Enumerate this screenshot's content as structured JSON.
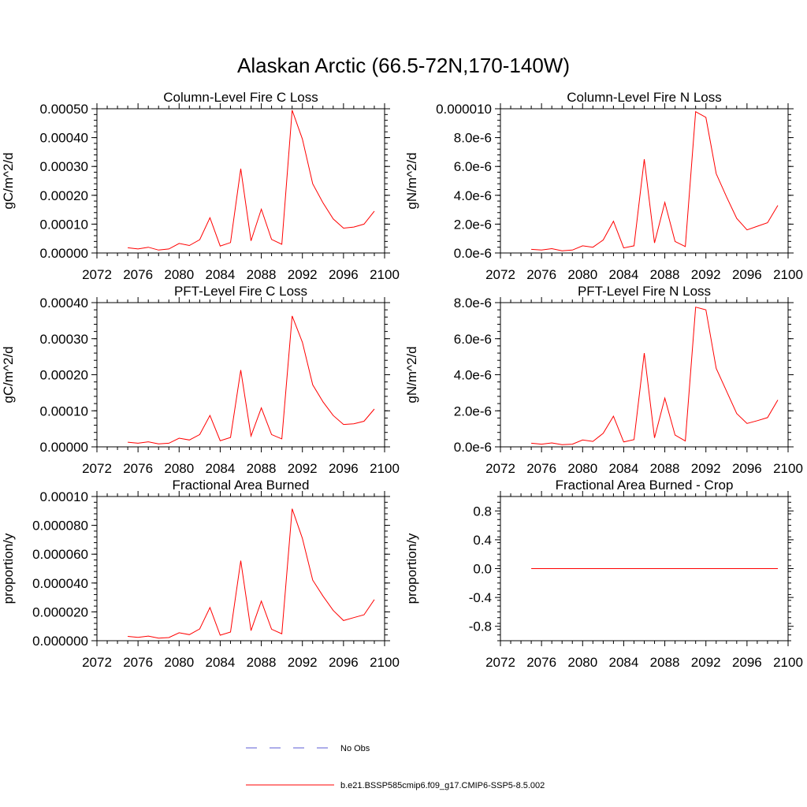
{
  "figure": {
    "title": "Alaskan Arctic (66.5-72N,170-140W)"
  },
  "legend": {
    "entries": [
      {
        "label": "No Obs",
        "color": "#5b5bd6",
        "style": "dashed"
      },
      {
        "label": "b.e21.BSSP585cmip6.f09_g17.CMIP6-SSP5-8.5.002",
        "color": "#ff0000",
        "style": "solid"
      }
    ]
  },
  "colors": {
    "model_series": "#ff0000",
    "obs_series": "#5b5bd6",
    "axes": "#000000"
  },
  "chart_data": [
    {
      "type": "line",
      "title": "Column-Level Fire C Loss",
      "ylabel": "gC/m^2/d",
      "xlim": [
        2072,
        2100
      ],
      "ylim": [
        0,
        0.0005
      ],
      "xticks": [
        2072,
        2076,
        2080,
        2084,
        2088,
        2092,
        2096,
        2100
      ],
      "yticks": [
        0,
        0.0001,
        0.0002,
        0.0003,
        0.0004,
        0.0005
      ],
      "ytick_labels": [
        "0.00000",
        "0.00010",
        "0.00020",
        "0.00030",
        "0.00040",
        "0.00050"
      ],
      "x": [
        2075,
        2076,
        2077,
        2078,
        2079,
        2080,
        2081,
        2082,
        2083,
        2084,
        2085,
        2086,
        2087,
        2088,
        2089,
        2090,
        2091,
        2092,
        2093,
        2094,
        2095,
        2096,
        2097,
        2098,
        2099
      ],
      "series": [
        {
          "values": [
            1.8e-05,
            1.4e-05,
            2e-05,
            1e-05,
            1.4e-05,
            3.3e-05,
            2.6e-05,
            4.6e-05,
            0.000122,
            2.4e-05,
            3.6e-05,
            0.000292,
            4.2e-05,
            0.000152,
            4.7e-05,
            3e-05,
            0.000495,
            0.000395,
            0.00024,
            0.000174,
            0.000118,
            8.6e-05,
            9e-05,
            0.0001,
            0.000145
          ]
        }
      ]
    },
    {
      "type": "line",
      "title": "Column-Level Fire N Loss",
      "ylabel": "gN/m^2/d",
      "xlim": [
        2072,
        2100
      ],
      "ylim": [
        0,
        1e-05
      ],
      "xticks": [
        2072,
        2076,
        2080,
        2084,
        2088,
        2092,
        2096,
        2100
      ],
      "yticks": [
        0,
        2e-06,
        4e-06,
        6e-06,
        8e-06,
        1e-05
      ],
      "ytick_labels": [
        "0.0e-6",
        "2.0e-6",
        "4.0e-6",
        "6.0e-6",
        "8.0e-6",
        "0.000010"
      ],
      "x": [
        2075,
        2076,
        2077,
        2078,
        2079,
        2080,
        2081,
        2082,
        2083,
        2084,
        2085,
        2086,
        2087,
        2088,
        2089,
        2090,
        2091,
        2092,
        2093,
        2094,
        2095,
        2096,
        2097,
        2098,
        2099
      ],
      "series": [
        {
          "values": [
            2.5e-07,
            2e-07,
            3e-07,
            1.5e-07,
            2e-07,
            5e-07,
            4e-07,
            9e-07,
            2.2e-06,
            3.5e-07,
            5e-07,
            6.5e-06,
            7e-07,
            3.5e-06,
            8e-07,
            4.5e-07,
            9.8e-06,
            9.4e-06,
            5.5e-06,
            3.9e-06,
            2.4e-06,
            1.6e-06,
            1.85e-06,
            2.1e-06,
            3.3e-06
          ]
        }
      ]
    },
    {
      "type": "line",
      "title": "PFT-Level Fire C Loss",
      "ylabel": "gC/m^2/d",
      "xlim": [
        2072,
        2100
      ],
      "ylim": [
        0,
        0.0004
      ],
      "xticks": [
        2072,
        2076,
        2080,
        2084,
        2088,
        2092,
        2096,
        2100
      ],
      "yticks": [
        0,
        0.0001,
        0.0002,
        0.0003,
        0.0004
      ],
      "ytick_labels": [
        "0.00000",
        "0.00010",
        "0.00020",
        "0.00030",
        "0.00040"
      ],
      "x": [
        2075,
        2076,
        2077,
        2078,
        2079,
        2080,
        2081,
        2082,
        2083,
        2084,
        2085,
        2086,
        2087,
        2088,
        2089,
        2090,
        2091,
        2092,
        2093,
        2094,
        2095,
        2096,
        2097,
        2098,
        2099
      ],
      "series": [
        {
          "values": [
            1.3e-05,
            1e-05,
            1.4e-05,
            8e-06,
            1e-05,
            2.4e-05,
            1.9e-05,
            3.4e-05,
            8.7e-05,
            1.7e-05,
            2.6e-05,
            0.000213,
            3e-05,
            0.000108,
            3.4e-05,
            2.2e-05,
            0.000363,
            0.00029,
            0.000172,
            0.000125,
            8.7e-05,
            6.2e-05,
            6.4e-05,
            7.1e-05,
            0.000105
          ]
        }
      ]
    },
    {
      "type": "line",
      "title": "PFT-Level Fire N Loss",
      "ylabel": "gN/m^2/d",
      "xlim": [
        2072,
        2100
      ],
      "ylim": [
        0,
        8e-06
      ],
      "xticks": [
        2072,
        2076,
        2080,
        2084,
        2088,
        2092,
        2096,
        2100
      ],
      "yticks": [
        0,
        2e-06,
        4e-06,
        6e-06,
        8e-06
      ],
      "ytick_labels": [
        "0.0e-6",
        "2.0e-6",
        "4.0e-6",
        "6.0e-6",
        "8.0e-6"
      ],
      "x": [
        2075,
        2076,
        2077,
        2078,
        2079,
        2080,
        2081,
        2082,
        2083,
        2084,
        2085,
        2086,
        2087,
        2088,
        2089,
        2090,
        2091,
        2092,
        2093,
        2094,
        2095,
        2096,
        2097,
        2098,
        2099
      ],
      "series": [
        {
          "values": [
            2e-07,
            1.5e-07,
            2.2e-07,
            1.2e-07,
            1.5e-07,
            3.8e-07,
            3e-07,
            7.5e-07,
            1.7e-06,
            2.7e-07,
            4e-07,
            5.2e-06,
            5e-07,
            2.7e-06,
            6.5e-07,
            3.3e-07,
            7.75e-06,
            7.6e-06,
            4.35e-06,
            3.1e-06,
            1.85e-06,
            1.3e-06,
            1.45e-06,
            1.62e-06,
            2.6e-06
          ]
        }
      ]
    },
    {
      "type": "line",
      "title": "Fractional Area Burned",
      "ylabel": "proportion/y",
      "xlim": [
        2072,
        2100
      ],
      "ylim": [
        0,
        0.0001
      ],
      "xticks": [
        2072,
        2076,
        2080,
        2084,
        2088,
        2092,
        2096,
        2100
      ],
      "yticks": [
        0,
        2e-05,
        4e-05,
        6e-05,
        8e-05,
        0.0001
      ],
      "ytick_labels": [
        "0.000000",
        "0.000020",
        "0.000040",
        "0.000060",
        "0.000080",
        "0.00010"
      ],
      "x": [
        2075,
        2076,
        2077,
        2078,
        2079,
        2080,
        2081,
        2082,
        2083,
        2084,
        2085,
        2086,
        2087,
        2088,
        2089,
        2090,
        2091,
        2092,
        2093,
        2094,
        2095,
        2096,
        2097,
        2098,
        2099
      ],
      "series": [
        {
          "values": [
            3e-06,
            2.3e-06,
            3.2e-06,
            1.8e-06,
            2.2e-06,
            5.5e-06,
            4.2e-06,
            8.2e-06,
            2.3e-05,
            3.8e-06,
            6e-06,
            5.55e-05,
            7e-06,
            2.75e-05,
            8e-06,
            4.8e-06,
            9.15e-05,
            7.1e-05,
            4.2e-05,
            3.1e-05,
            2.1e-05,
            1.4e-05,
            1.6e-05,
            1.8e-05,
            2.85e-05
          ]
        }
      ]
    },
    {
      "type": "line",
      "title": "Fractional Area Burned - Crop",
      "ylabel": "proportion/y",
      "xlim": [
        2072,
        2100
      ],
      "ylim": [
        -1,
        1
      ],
      "xticks": [
        2072,
        2076,
        2080,
        2084,
        2088,
        2092,
        2096,
        2100
      ],
      "yticks": [
        -0.8,
        -0.4,
        0,
        0.4,
        0.8
      ],
      "ytick_labels": [
        "-0.8",
        "-0.4",
        "0.0",
        "0.4",
        "0.8"
      ],
      "x": [
        2075,
        2076,
        2077,
        2078,
        2079,
        2080,
        2081,
        2082,
        2083,
        2084,
        2085,
        2086,
        2087,
        2088,
        2089,
        2090,
        2091,
        2092,
        2093,
        2094,
        2095,
        2096,
        2097,
        2098,
        2099
      ],
      "series": [
        {
          "values": [
            0,
            0,
            0,
            0,
            0,
            0,
            0,
            0,
            0,
            0,
            0,
            0,
            0,
            0,
            0,
            0,
            0,
            0,
            0,
            0,
            0,
            0,
            0,
            0,
            0
          ]
        }
      ]
    }
  ]
}
